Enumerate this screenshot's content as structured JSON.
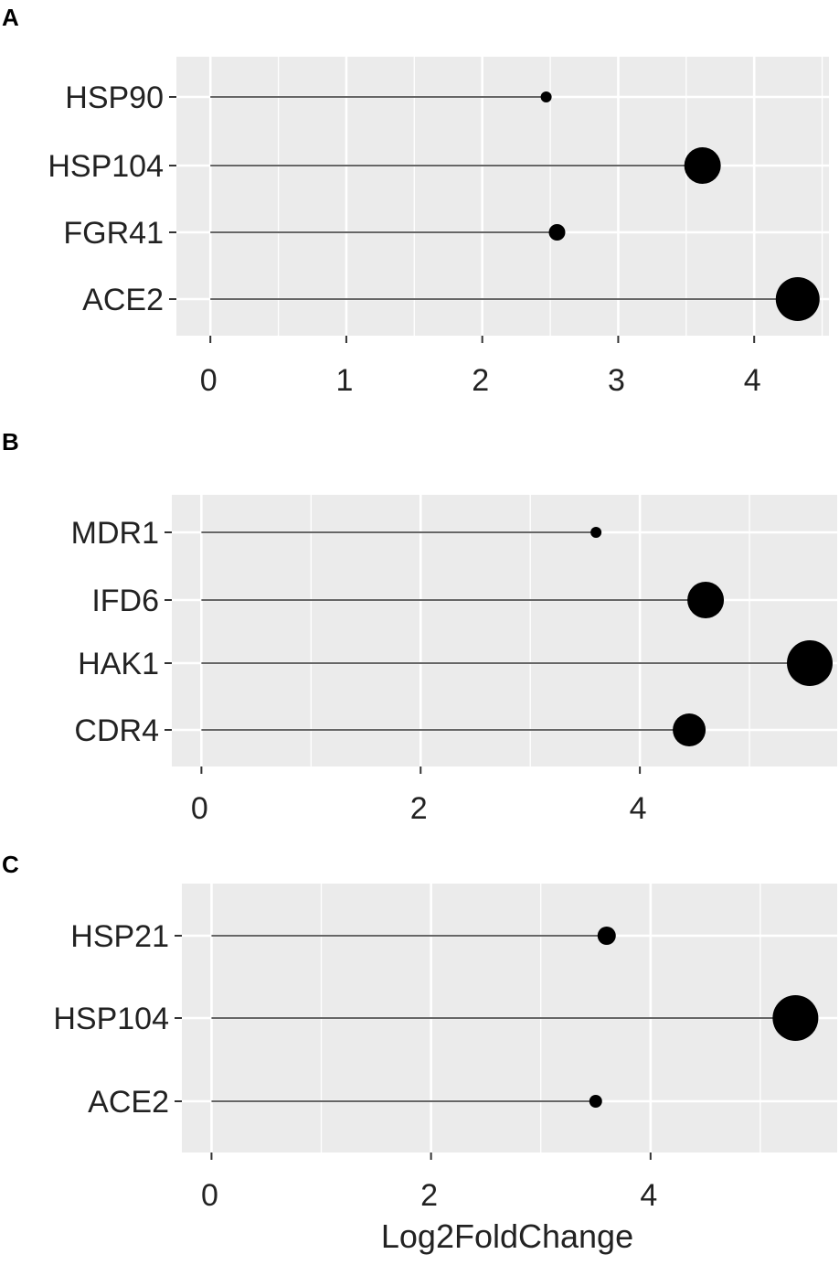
{
  "colors": {
    "panel_bg": "#ebebeb",
    "grid": "#ffffff",
    "stem": "#666666",
    "point": "#000000",
    "tick": "#333333"
  },
  "x_axis_title": "Log2FoldChange",
  "chart_data": [
    {
      "panel": "A",
      "type": "lollipop",
      "categories": [
        "HSP90",
        "HSP104",
        "FGR41",
        "ACE2"
      ],
      "values": [
        2.47,
        3.62,
        2.55,
        4.32
      ],
      "point_size_rank": [
        1,
        3,
        2,
        4
      ],
      "x_ticks": [
        "0",
        "1",
        "2",
        "3",
        "4"
      ],
      "xlim": [
        -0.25,
        4.55
      ],
      "grid": true
    },
    {
      "panel": "B",
      "type": "lollipop",
      "categories": [
        "MDR1",
        "IFD6",
        "HAK1",
        "CDR4"
      ],
      "values": [
        3.6,
        4.6,
        5.55,
        4.45
      ],
      "point_size_rank": [
        1,
        3,
        4,
        3
      ],
      "x_ticks": [
        "0",
        "2",
        "4"
      ],
      "xlim": [
        -0.27,
        5.8
      ],
      "grid": true
    },
    {
      "panel": "C",
      "type": "lollipop",
      "categories": [
        "HSP21",
        "HSP104",
        "ACE2"
      ],
      "values": [
        3.6,
        5.32,
        3.5
      ],
      "point_size_rank": [
        2,
        4,
        1
      ],
      "x_ticks": [
        "0",
        "2",
        "4"
      ],
      "xlim": [
        -0.27,
        5.7
      ],
      "grid": true
    }
  ]
}
